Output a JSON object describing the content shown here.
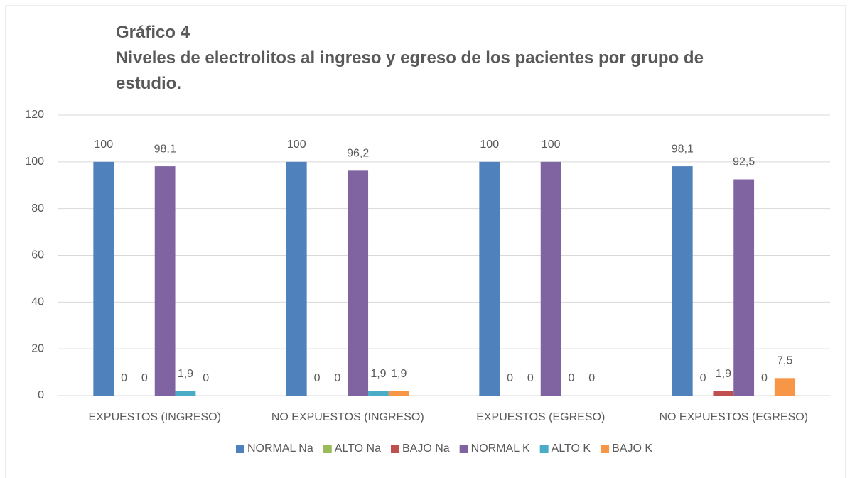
{
  "chart_data": {
    "type": "bar",
    "title": "Gráfico 4",
    "subtitle": "Niveles de electrolitos al ingreso y egreso de los pacientes por grupo de estudio.",
    "categories": [
      "EXPUESTOS (INGRESO)",
      "NO EXPUESTOS (INGRESO)",
      "EXPUESTOS (EGRESO)",
      "NO EXPUESTOS (EGRESO)"
    ],
    "series": [
      {
        "name": "NORMAL Na",
        "color": "#4f81bd",
        "values": [
          100,
          100,
          100,
          98.1
        ],
        "value_labels": [
          "100",
          "100",
          "100",
          "98,1"
        ]
      },
      {
        "name": "ALTO Na",
        "color": "#9bbb59",
        "values": [
          0,
          0,
          0,
          0
        ],
        "value_labels": [
          "0",
          "0",
          "0",
          "0"
        ]
      },
      {
        "name": "BAJO Na",
        "color": "#c0504d",
        "values": [
          0,
          0,
          0,
          1.9
        ],
        "value_labels": [
          "0",
          "0",
          "0",
          "1,9"
        ]
      },
      {
        "name": "NORMAL K",
        "color": "#8064a2",
        "values": [
          98.1,
          96.2,
          100,
          92.5
        ],
        "value_labels": [
          "98,1",
          "96,2",
          "100",
          "92,5"
        ]
      },
      {
        "name": "ALTO K",
        "color": "#4bacc6",
        "values": [
          1.9,
          1.9,
          0,
          0
        ],
        "value_labels": [
          "1,9",
          "1,9",
          "0",
          "0"
        ]
      },
      {
        "name": "BAJO K",
        "color": "#f79646",
        "values": [
          0,
          1.9,
          0,
          7.5
        ],
        "value_labels": [
          "0",
          "1,9",
          "0",
          "7,5"
        ]
      }
    ],
    "ylim": [
      0,
      120
    ],
    "yticks": [
      0,
      20,
      40,
      60,
      80,
      100,
      120
    ],
    "grid": true,
    "legend": "bottom"
  }
}
